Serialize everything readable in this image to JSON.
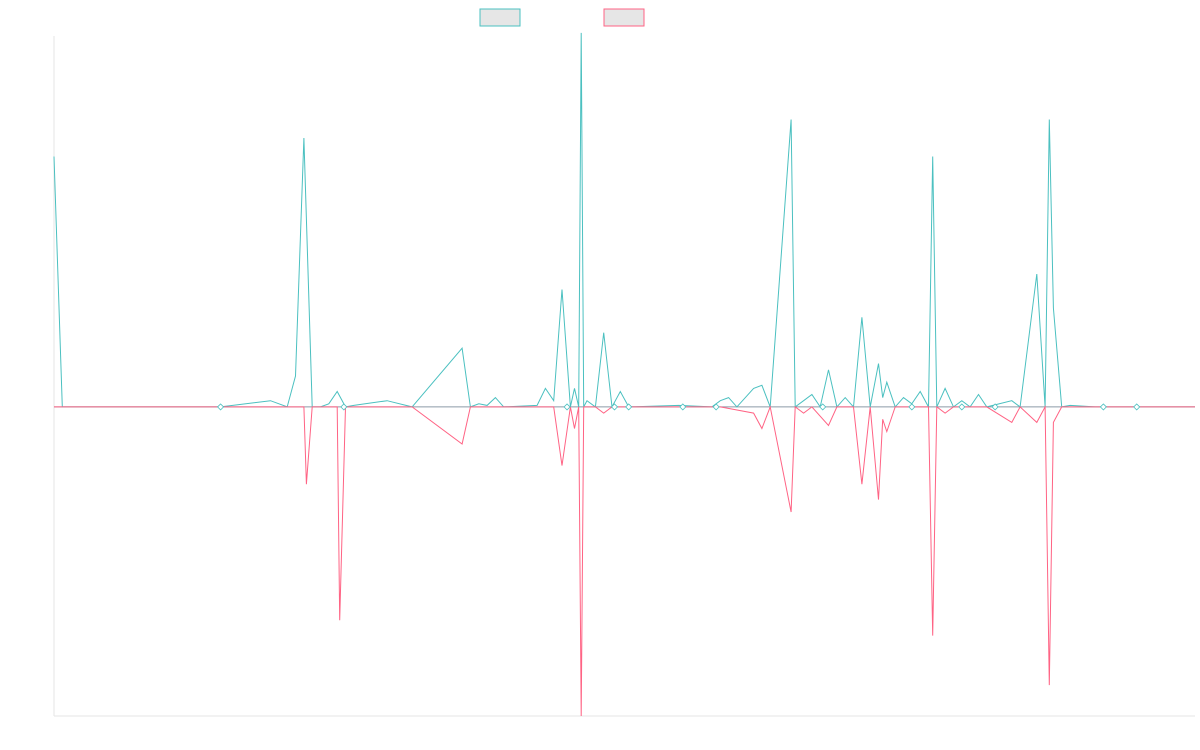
{
  "chart_data": {
    "type": "line",
    "title": "",
    "xlabel": "",
    "ylabel": "",
    "grid": false,
    "legend_position": "top-center",
    "ylim": [
      -1.0,
      1.2
    ],
    "series": [
      {
        "color": "#4bc0c0",
        "points": [
          [
            0,
            0.81
          ],
          [
            1,
            0
          ],
          [
            20,
            0
          ],
          [
            26,
            0.02
          ],
          [
            28,
            0
          ],
          [
            29,
            0.1
          ],
          [
            30,
            0.87
          ],
          [
            31,
            0
          ],
          [
            32,
            0
          ],
          [
            33,
            0.01
          ],
          [
            34,
            0.05
          ],
          [
            35,
            0
          ],
          [
            36,
            0.005
          ],
          [
            40,
            0.02
          ],
          [
            43,
            0
          ],
          [
            49,
            0.19
          ],
          [
            50,
            0
          ],
          [
            51,
            0.01
          ],
          [
            52,
            0.005
          ],
          [
            53,
            0.03
          ],
          [
            54,
            0
          ],
          [
            58,
            0.005
          ],
          [
            59,
            0.06
          ],
          [
            60,
            0.02
          ],
          [
            61,
            0.38
          ],
          [
            62,
            0
          ],
          [
            62.5,
            0.06
          ],
          [
            63,
            0
          ],
          [
            63.3,
            1.21
          ],
          [
            63.6,
            0
          ],
          [
            64,
            0.02
          ],
          [
            65,
            0
          ],
          [
            66,
            0.24
          ],
          [
            67,
            0
          ],
          [
            68,
            0.05
          ],
          [
            69,
            0
          ],
          [
            75,
            0.005
          ],
          [
            79,
            0
          ],
          [
            80,
            0.02
          ],
          [
            81,
            0.03
          ],
          [
            82,
            0
          ],
          [
            84,
            0.06
          ],
          [
            85,
            0.07
          ],
          [
            86,
            0
          ],
          [
            88.5,
            0.93
          ],
          [
            89,
            0
          ],
          [
            90,
            0.02
          ],
          [
            91,
            0.04
          ],
          [
            92,
            0
          ],
          [
            93,
            0.12
          ],
          [
            94,
            0
          ],
          [
            95,
            0.03
          ],
          [
            96,
            0
          ],
          [
            97,
            0.29
          ],
          [
            98,
            0
          ],
          [
            99,
            0.14
          ],
          [
            99.5,
            0.03
          ],
          [
            100,
            0.08
          ],
          [
            101,
            0
          ],
          [
            102,
            0.03
          ],
          [
            103,
            0.01
          ],
          [
            104,
            0.05
          ],
          [
            105,
            0
          ],
          [
            105.5,
            0.81
          ],
          [
            106,
            0
          ],
          [
            107,
            0.06
          ],
          [
            108,
            0
          ],
          [
            109,
            0.02
          ],
          [
            110,
            0
          ],
          [
            111,
            0.04
          ],
          [
            112,
            0
          ],
          [
            115,
            0.02
          ],
          [
            116,
            0
          ],
          [
            118,
            0.43
          ],
          [
            119,
            0
          ],
          [
            119.5,
            0.93
          ],
          [
            120,
            0.32
          ],
          [
            121,
            0
          ],
          [
            122,
            0.005
          ],
          [
            125,
            0
          ],
          [
            128,
            0
          ],
          [
            129,
            0
          ],
          [
            133,
            0
          ],
          [
            137,
            0
          ]
        ]
      },
      {
        "color": "#ff6384",
        "points": [
          [
            0,
            0
          ],
          [
            1,
            0
          ],
          [
            20,
            0
          ],
          [
            30,
            0
          ],
          [
            30.3,
            -0.25
          ],
          [
            31,
            0
          ],
          [
            32,
            0
          ],
          [
            33,
            0
          ],
          [
            34,
            0
          ],
          [
            34.3,
            -0.69
          ],
          [
            35,
            0
          ],
          [
            40,
            0
          ],
          [
            43,
            0
          ],
          [
            49,
            -0.12
          ],
          [
            50,
            0
          ],
          [
            60,
            0
          ],
          [
            61,
            -0.19
          ],
          [
            62,
            0
          ],
          [
            62.5,
            -0.07
          ],
          [
            63,
            0
          ],
          [
            63.3,
            -1.0
          ],
          [
            63.6,
            0
          ],
          [
            64,
            0
          ],
          [
            65,
            0
          ],
          [
            66,
            -0.02
          ],
          [
            67,
            0
          ],
          [
            80,
            0
          ],
          [
            84,
            -0.02
          ],
          [
            85,
            -0.07
          ],
          [
            86,
            0
          ],
          [
            88.5,
            -0.34
          ],
          [
            89,
            0
          ],
          [
            90,
            -0.02
          ],
          [
            91,
            0
          ],
          [
            93,
            -0.06
          ],
          [
            94,
            0
          ],
          [
            96,
            0
          ],
          [
            97,
            -0.25
          ],
          [
            98,
            0
          ],
          [
            99,
            -0.3
          ],
          [
            99.5,
            -0.04
          ],
          [
            100,
            -0.08
          ],
          [
            101,
            0
          ],
          [
            105,
            0
          ],
          [
            105.5,
            -0.74
          ],
          [
            106,
            0
          ],
          [
            107,
            -0.02
          ],
          [
            108,
            0
          ],
          [
            112,
            0
          ],
          [
            115,
            -0.05
          ],
          [
            116,
            0
          ],
          [
            118,
            -0.05
          ],
          [
            119,
            0
          ],
          [
            119.5,
            -0.9
          ],
          [
            120,
            -0.05
          ],
          [
            121,
            0
          ],
          [
            125,
            0
          ],
          [
            137,
            0
          ]
        ]
      }
    ],
    "markers": [
      {
        "x": 20,
        "series": 0
      },
      {
        "x": 34.8,
        "series": 0
      },
      {
        "x": 61.6,
        "series": 0
      },
      {
        "x": 67.3,
        "series": 0
      },
      {
        "x": 69,
        "series": 0
      },
      {
        "x": 75.5,
        "series": 0
      },
      {
        "x": 79.5,
        "series": 0
      },
      {
        "x": 92.3,
        "series": 0
      },
      {
        "x": 103,
        "series": 0
      },
      {
        "x": 109,
        "series": 0
      },
      {
        "x": 113,
        "series": 0
      },
      {
        "x": 126,
        "series": 0
      },
      {
        "x": 130,
        "series": 0
      }
    ]
  }
}
